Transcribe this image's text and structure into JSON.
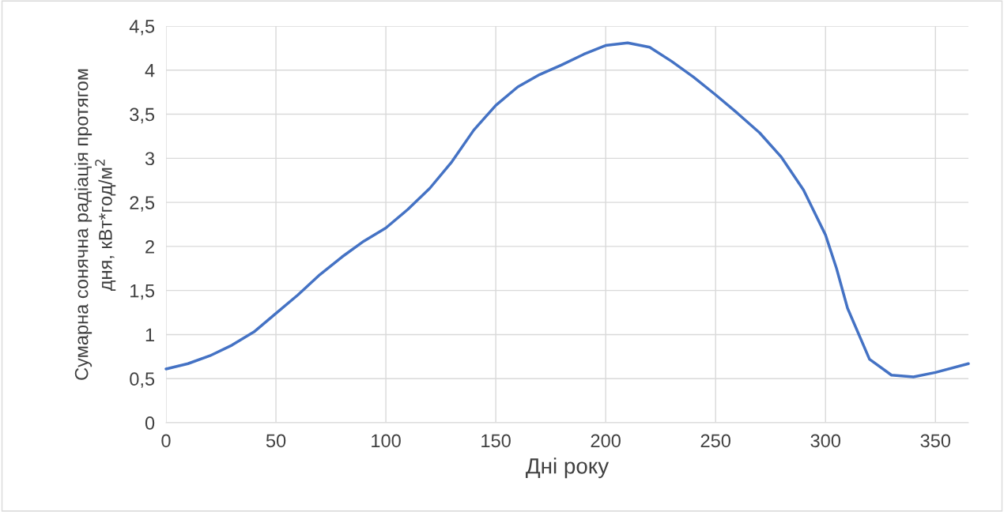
{
  "chart_data": {
    "type": "line",
    "xlabel": "Дні року",
    "ylabel": "Сумарна сонячна радіація протягом\nдня, кВт*год/м$^{2}$",
    "x": [
      0,
      10,
      20,
      30,
      40,
      50,
      60,
      70,
      80,
      90,
      100,
      110,
      120,
      130,
      140,
      150,
      160,
      170,
      180,
      190,
      200,
      210,
      220,
      230,
      240,
      250,
      260,
      270,
      280,
      290,
      300,
      305,
      310,
      320,
      330,
      340,
      350,
      365
    ],
    "series": [
      {
        "color": "#4472c4",
        "values": [
          0.61,
          0.67,
          0.76,
          0.88,
          1.03,
          1.24,
          1.45,
          1.68,
          1.88,
          2.06,
          2.21,
          2.42,
          2.66,
          2.96,
          3.32,
          3.6,
          3.81,
          3.95,
          4.06,
          4.18,
          4.28,
          4.31,
          4.26,
          4.1,
          3.92,
          3.72,
          3.51,
          3.29,
          3.01,
          2.64,
          2.13,
          1.75,
          1.3,
          0.72,
          0.54,
          0.52,
          0.57,
          0.67
        ]
      }
    ],
    "xlim": [
      0,
      365
    ],
    "ylim": [
      0,
      4.5
    ],
    "xticks": [
      0,
      50,
      100,
      150,
      200,
      250,
      300,
      350
    ],
    "yticks": [
      0,
      {
        "value": 0.5,
        "label": "0,5"
      },
      1,
      {
        "value": 1.5,
        "label": "1,5"
      },
      2,
      {
        "value": 2.5,
        "label": "2,5"
      },
      3,
      {
        "value": 3.5,
        "label": "3,5"
      },
      4,
      {
        "value": 4.5,
        "label": "4,5"
      }
    ],
    "grid": true,
    "marker": "none",
    "line_style": "solid"
  }
}
